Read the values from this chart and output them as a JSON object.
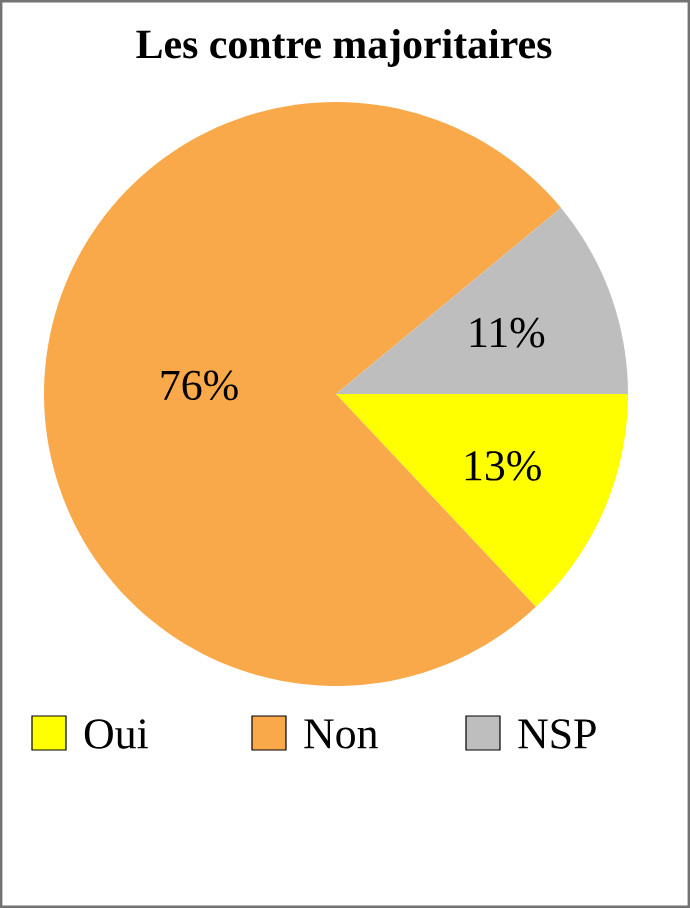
{
  "chart_data": {
    "type": "pie",
    "title": "Les contre majoritaires",
    "categories": [
      "Oui",
      "Non",
      "NSP"
    ],
    "values": [
      13,
      76,
      11
    ],
    "colors": [
      "#ffff00",
      "#f9a84a",
      "#bebebe"
    ],
    "value_labels": [
      "13%",
      "76%",
      "11%"
    ],
    "legend": "bottom"
  }
}
